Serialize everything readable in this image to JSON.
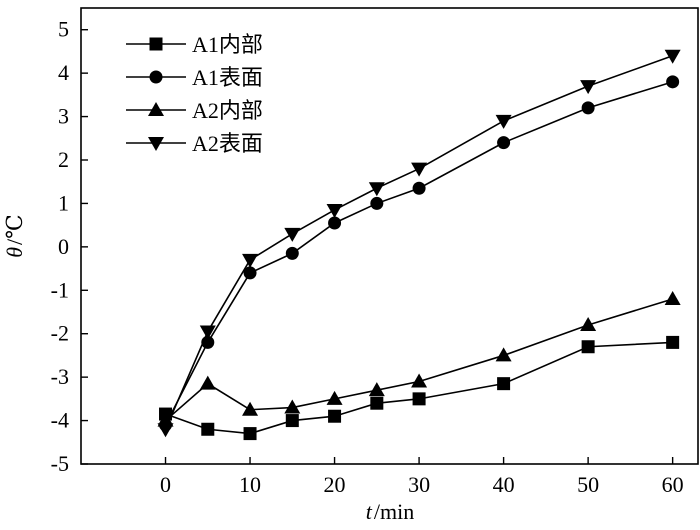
{
  "chart_data": {
    "type": "line",
    "xlabel": {
      "var": "t",
      "unit": "/min"
    },
    "ylabel": {
      "var": "θ",
      "unit": "/℃"
    },
    "xlim": [
      -10,
      63
    ],
    "ylim": [
      -5,
      5.5
    ],
    "xticks": [
      0,
      10,
      20,
      30,
      40,
      50,
      60
    ],
    "yticks": [
      -5,
      -4,
      -3,
      -2,
      -1,
      0,
      1,
      2,
      3,
      4,
      5
    ],
    "grid": false,
    "legend_position": "top-left",
    "x": [
      0,
      5,
      10,
      15,
      20,
      25,
      30,
      40,
      50,
      60
    ],
    "series": [
      {
        "name": "A1内部",
        "marker": "square",
        "values": [
          -3.85,
          -4.2,
          -4.3,
          -4.0,
          -3.9,
          -3.6,
          -3.5,
          -3.15,
          -2.3,
          -2.2
        ]
      },
      {
        "name": "A1表面",
        "marker": "circle",
        "values": [
          -4.1,
          -2.2,
          -0.6,
          -0.15,
          0.55,
          1.0,
          1.35,
          2.4,
          3.2,
          3.8
        ]
      },
      {
        "name": "A2内部",
        "marker": "triangle-up",
        "values": [
          -4.0,
          -3.15,
          -3.75,
          -3.7,
          -3.5,
          -3.3,
          -3.1,
          -2.5,
          -1.8,
          -1.2
        ]
      },
      {
        "name": "A2表面",
        "marker": "triangle-down",
        "values": [
          -4.2,
          -1.95,
          -0.3,
          0.3,
          0.85,
          1.35,
          1.8,
          2.9,
          3.7,
          4.4
        ]
      }
    ]
  }
}
